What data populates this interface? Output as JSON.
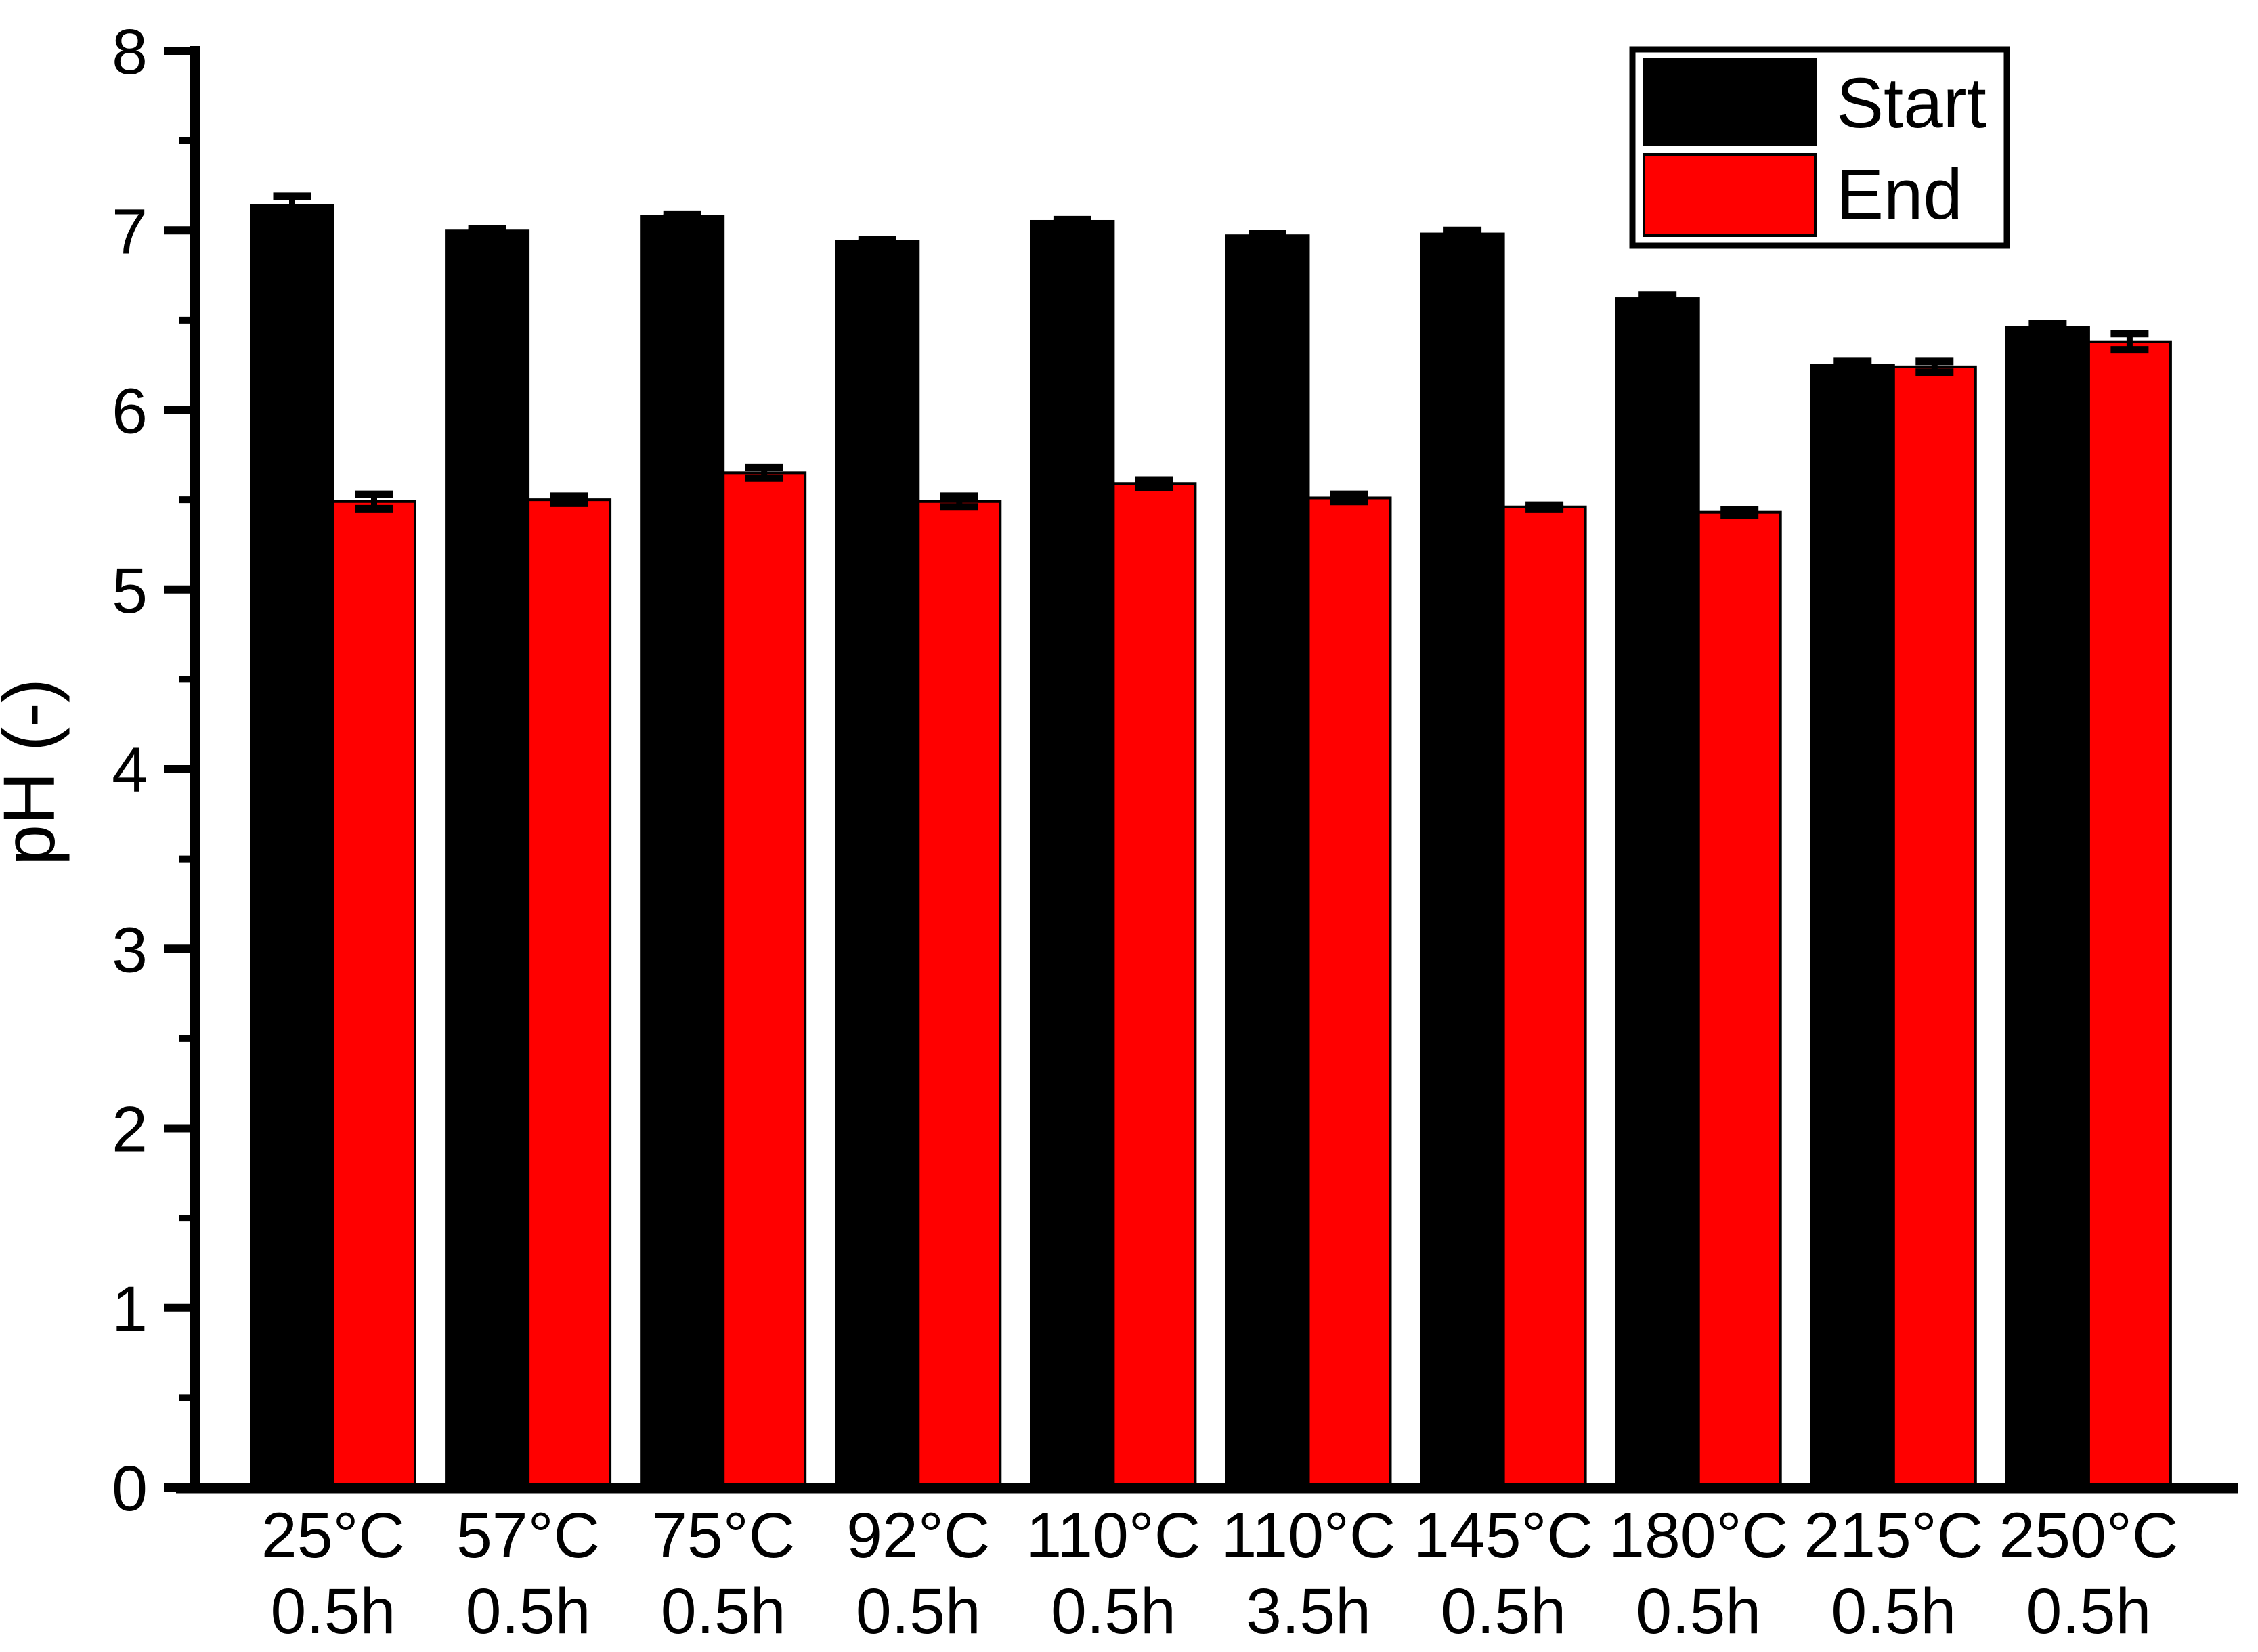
{
  "chart_data": {
    "type": "bar",
    "title": "",
    "xlabel": "",
    "ylabel": "pH (-)",
    "ylim": [
      0,
      8
    ],
    "ytick_interval": 1,
    "yminor_interval": 0.5,
    "ytick_labels": [
      "0",
      "1",
      "2",
      "3",
      "4",
      "5",
      "6",
      "7",
      "8"
    ],
    "grid": false,
    "legend_position": "top-right",
    "legend_entries": [
      "Start",
      "End"
    ],
    "categories": [
      {
        "line1": "25°C",
        "line2": "0.5h"
      },
      {
        "line1": "57°C",
        "line2": "0.5h"
      },
      {
        "line1": "75°C",
        "line2": "0.5h"
      },
      {
        "line1": "92°C",
        "line2": "0.5h"
      },
      {
        "line1": "110°C",
        "line2": "0.5h"
      },
      {
        "line1": "110°C",
        "line2": "3.5h"
      },
      {
        "line1": "145°C",
        "line2": "0.5h"
      },
      {
        "line1": "180°C",
        "line2": "0.5h"
      },
      {
        "line1": "215°C",
        "line2": "0.5h"
      },
      {
        "line1": "250°C",
        "line2": "0.5h"
      }
    ],
    "series": [
      {
        "name": "Start",
        "color": "#000000",
        "values": [
          7.14,
          7.0,
          7.08,
          6.94,
          7.05,
          6.97,
          6.98,
          6.62,
          6.25,
          6.46
        ],
        "errors": [
          0.05,
          0.01,
          0.01,
          0.01,
          0.01,
          0.01,
          0.02,
          0.02,
          0.02,
          0.02
        ]
      },
      {
        "name": "End",
        "color": "#FF0000",
        "values": [
          5.49,
          5.5,
          5.65,
          5.49,
          5.59,
          5.51,
          5.46,
          5.43,
          6.24,
          6.38
        ],
        "errors": [
          0.04,
          0.02,
          0.03,
          0.03,
          0.02,
          0.02,
          0.01,
          0.015,
          0.03,
          0.045
        ]
      }
    ],
    "colors": {
      "axis": "#000000",
      "error_bar": "#000000",
      "background": "#FFFFFF"
    }
  }
}
